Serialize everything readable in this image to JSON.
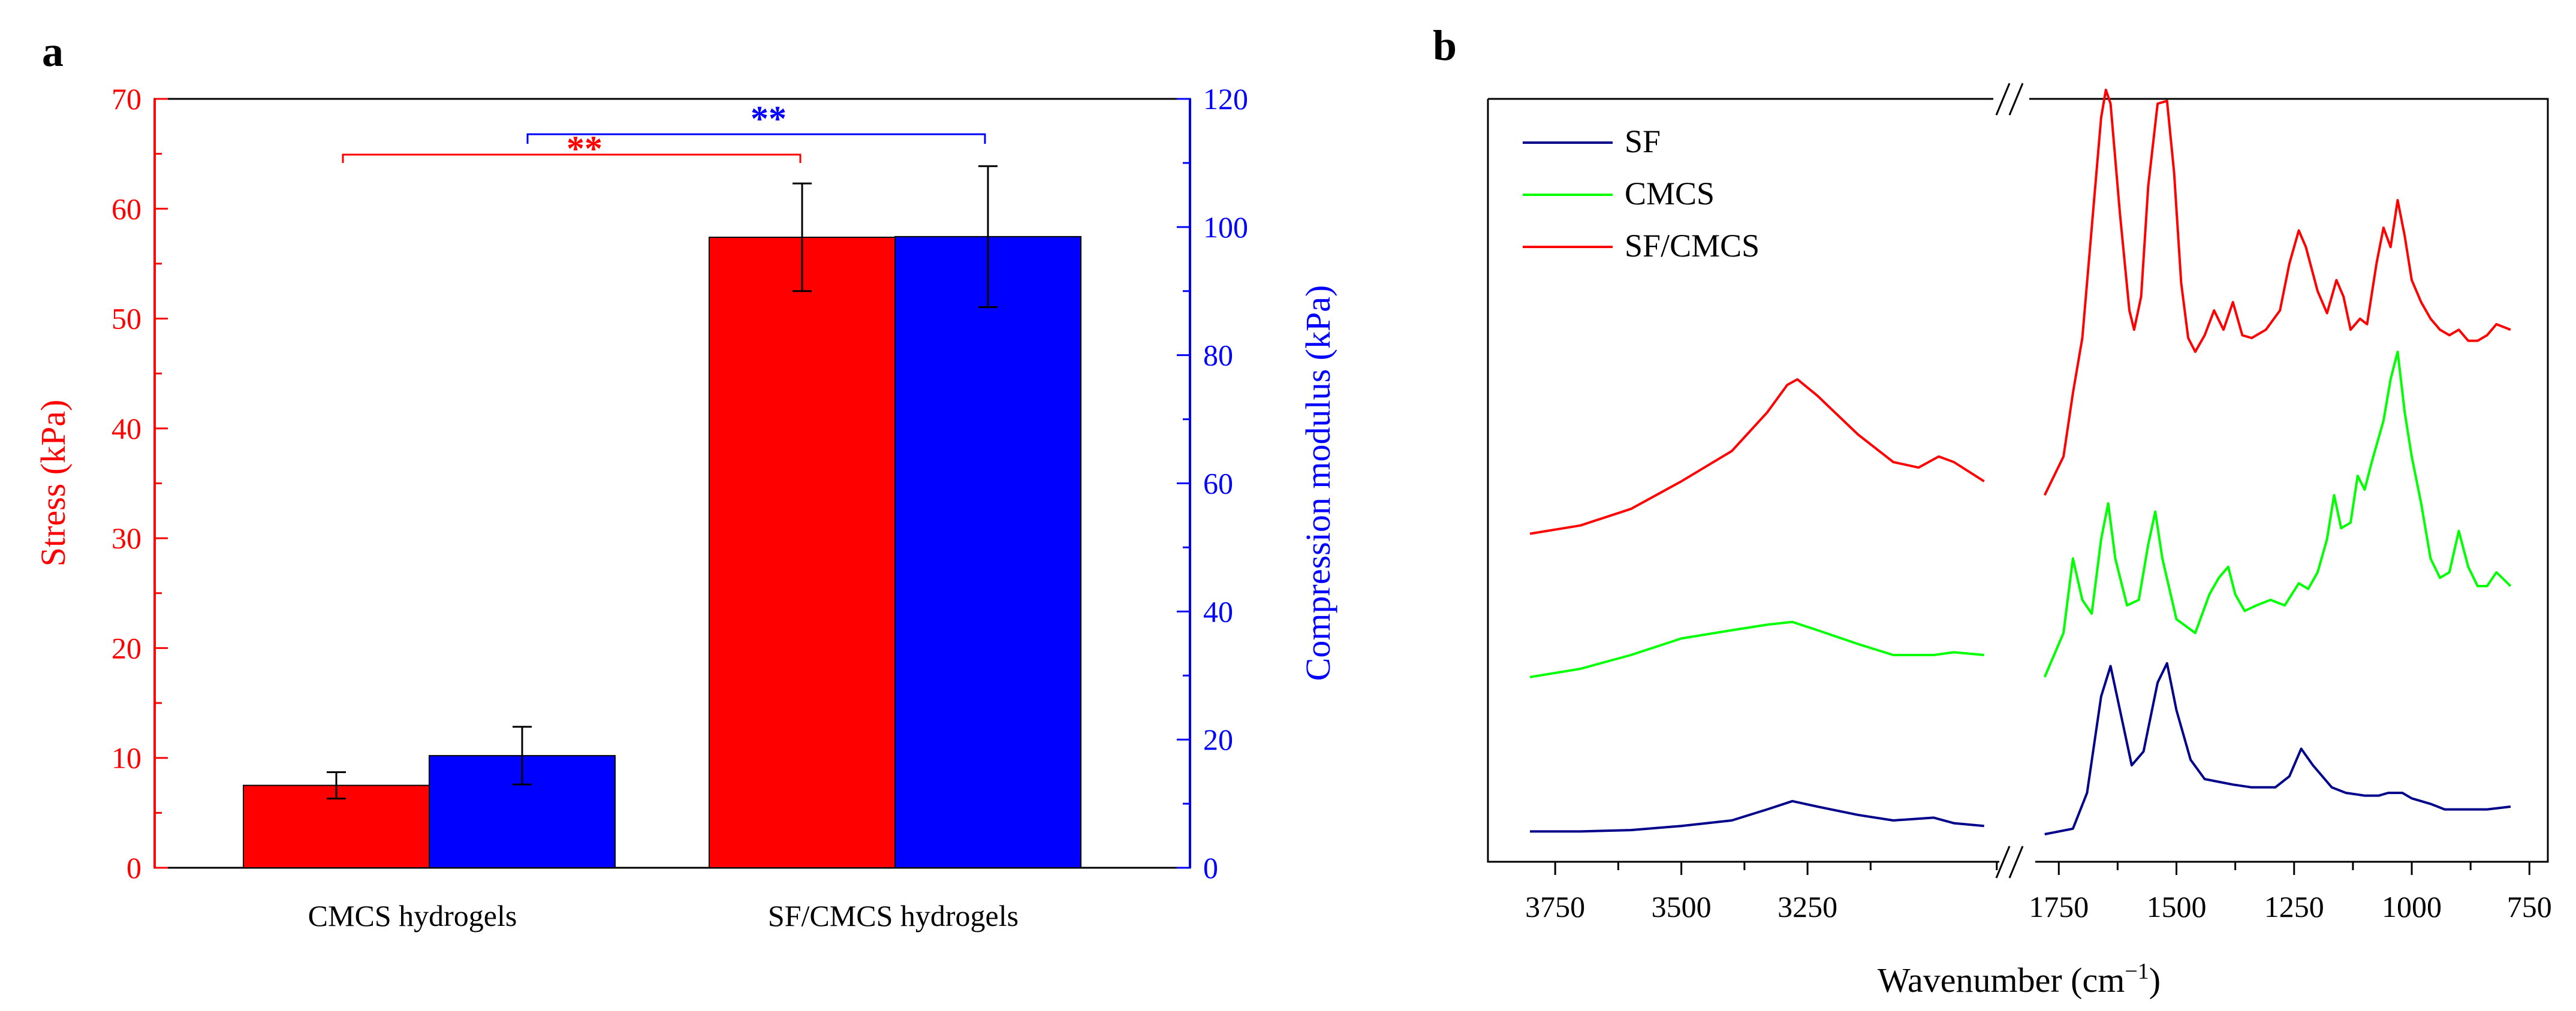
{
  "chart_data": [
    {
      "panel": "a",
      "type": "bar",
      "categories": [
        "CMCS hydrogels",
        "SF/CMCS hydrogels"
      ],
      "series": [
        {
          "name": "Stress (kPa)",
          "axis": "left",
          "color": "#ff0000",
          "values": [
            7.5,
            57.4
          ],
          "errors": [
            1.2,
            4.9
          ]
        },
        {
          "name": "Compression modulus (kPa)",
          "axis": "right",
          "color": "#0000ff",
          "values": [
            17.5,
            98.5
          ],
          "errors": [
            4.5,
            11.0
          ]
        }
      ],
      "ylabel": "Stress (kPa)",
      "ylabel_right": "Compression modulus (kPa)",
      "ylim": [
        0,
        70
      ],
      "ylim_right": [
        0,
        120
      ],
      "yticks": [
        "0",
        "10",
        "20",
        "30",
        "40",
        "50",
        "60",
        "70"
      ],
      "yticks_right": [
        "0",
        "20",
        "40",
        "60",
        "80",
        "100",
        "120"
      ],
      "left_axis_color": "#ff0000",
      "right_axis_color": "#0000ff",
      "significance": [
        {
          "label": "**",
          "color": "#ff0000",
          "axis": "left",
          "y": 64.5
        },
        {
          "label": "**",
          "color": "#0000ff",
          "axis": "right",
          "y": 114.0
        }
      ]
    },
    {
      "panel": "b",
      "type": "line",
      "xlabel": "Wavenumber (cm⁻¹)",
      "x_segments": [
        [
          3850,
          2870
        ],
        [
          1800,
          730
        ]
      ],
      "xticks": [
        "3750",
        "3500",
        "3250",
        "1750",
        "1500",
        "1250",
        "1000",
        "750"
      ],
      "xtick_values": [
        3750,
        3500,
        3250,
        1750,
        1500,
        1250,
        1000,
        750
      ],
      "series": [
        {
          "name": "SF",
          "color": "#00008b",
          "offset": 0.0,
          "points": [
            [
              3800,
              0.06
            ],
            [
              3700,
              0.06
            ],
            [
              3600,
              0.065
            ],
            [
              3500,
              0.08
            ],
            [
              3400,
              0.1
            ],
            [
              3330,
              0.14
            ],
            [
              3280,
              0.17
            ],
            [
              3230,
              0.15
            ],
            [
              3150,
              0.12
            ],
            [
              3080,
              0.1
            ],
            [
              3000,
              0.11
            ],
            [
              2960,
              0.09
            ],
            [
              2900,
              0.08
            ],
            [
              1780,
              0.05
            ],
            [
              1720,
              0.07
            ],
            [
              1690,
              0.2
            ],
            [
              1660,
              0.55
            ],
            [
              1640,
              0.66
            ],
            [
              1620,
              0.5
            ],
            [
              1595,
              0.3
            ],
            [
              1570,
              0.35
            ],
            [
              1540,
              0.6
            ],
            [
              1520,
              0.67
            ],
            [
              1500,
              0.5
            ],
            [
              1470,
              0.32
            ],
            [
              1440,
              0.25
            ],
            [
              1410,
              0.24
            ],
            [
              1380,
              0.23
            ],
            [
              1340,
              0.22
            ],
            [
              1290,
              0.22
            ],
            [
              1260,
              0.26
            ],
            [
              1235,
              0.36
            ],
            [
              1210,
              0.3
            ],
            [
              1170,
              0.22
            ],
            [
              1140,
              0.2
            ],
            [
              1100,
              0.19
            ],
            [
              1070,
              0.19
            ],
            [
              1050,
              0.2
            ],
            [
              1020,
              0.2
            ],
            [
              1000,
              0.18
            ],
            [
              960,
              0.16
            ],
            [
              930,
              0.14
            ],
            [
              880,
              0.14
            ],
            [
              840,
              0.14
            ],
            [
              790,
              0.15
            ]
          ]
        },
        {
          "name": "CMCS",
          "color": "#00ff00",
          "offset": 0.5,
          "points": [
            [
              3800,
              0.12
            ],
            [
              3700,
              0.15
            ],
            [
              3600,
              0.2
            ],
            [
              3500,
              0.26
            ],
            [
              3400,
              0.29
            ],
            [
              3330,
              0.31
            ],
            [
              3280,
              0.32
            ],
            [
              3230,
              0.29
            ],
            [
              3150,
              0.24
            ],
            [
              3080,
              0.2
            ],
            [
              3000,
              0.2
            ],
            [
              2960,
              0.21
            ],
            [
              2900,
              0.2
            ],
            [
              1780,
              0.12
            ],
            [
              1740,
              0.28
            ],
            [
              1720,
              0.55
            ],
            [
              1700,
              0.4
            ],
            [
              1680,
              0.35
            ],
            [
              1660,
              0.62
            ],
            [
              1645,
              0.75
            ],
            [
              1630,
              0.55
            ],
            [
              1605,
              0.38
            ],
            [
              1580,
              0.4
            ],
            [
              1560,
              0.6
            ],
            [
              1545,
              0.72
            ],
            [
              1530,
              0.55
            ],
            [
              1500,
              0.33
            ],
            [
              1460,
              0.28
            ],
            [
              1430,
              0.42
            ],
            [
              1410,
              0.48
            ],
            [
              1390,
              0.52
            ],
            [
              1375,
              0.42
            ],
            [
              1355,
              0.36
            ],
            [
              1330,
              0.38
            ],
            [
              1300,
              0.4
            ],
            [
              1270,
              0.38
            ],
            [
              1240,
              0.46
            ],
            [
              1220,
              0.44
            ],
            [
              1200,
              0.5
            ],
            [
              1180,
              0.62
            ],
            [
              1165,
              0.78
            ],
            [
              1150,
              0.66
            ],
            [
              1130,
              0.68
            ],
            [
              1115,
              0.85
            ],
            [
              1100,
              0.8
            ],
            [
              1085,
              0.9
            ],
            [
              1060,
              1.05
            ],
            [
              1045,
              1.2
            ],
            [
              1030,
              1.3
            ],
            [
              1015,
              1.08
            ],
            [
              1000,
              0.92
            ],
            [
              980,
              0.75
            ],
            [
              960,
              0.55
            ],
            [
              940,
              0.48
            ],
            [
              920,
              0.5
            ],
            [
              900,
              0.65
            ],
            [
              880,
              0.52
            ],
            [
              860,
              0.45
            ],
            [
              840,
              0.45
            ],
            [
              820,
              0.5
            ],
            [
              790,
              0.45
            ]
          ]
        },
        {
          "name": "SF/CMCS",
          "color": "#ff0000",
          "offset": 1.0,
          "points": [
            [
              3800,
              0.14
            ],
            [
              3700,
              0.17
            ],
            [
              3600,
              0.23
            ],
            [
              3500,
              0.33
            ],
            [
              3400,
              0.44
            ],
            [
              3330,
              0.58
            ],
            [
              3290,
              0.68
            ],
            [
              3270,
              0.7
            ],
            [
              3230,
              0.64
            ],
            [
              3150,
              0.5
            ],
            [
              3080,
              0.4
            ],
            [
              3030,
              0.38
            ],
            [
              2990,
              0.42
            ],
            [
              2960,
              0.4
            ],
            [
              2900,
              0.33
            ],
            [
              1780,
              0.28
            ],
            [
              1740,
              0.42
            ],
            [
              1720,
              0.65
            ],
            [
              1700,
              0.85
            ],
            [
              1680,
              1.25
            ],
            [
              1660,
              1.65
            ],
            [
              1650,
              1.75
            ],
            [
              1640,
              1.7
            ],
            [
              1620,
              1.3
            ],
            [
              1600,
              0.95
            ],
            [
              1590,
              0.88
            ],
            [
              1575,
              1.0
            ],
            [
              1560,
              1.4
            ],
            [
              1540,
              1.7
            ],
            [
              1520,
              1.71
            ],
            [
              1505,
              1.45
            ],
            [
              1490,
              1.05
            ],
            [
              1475,
              0.85
            ],
            [
              1460,
              0.8
            ],
            [
              1440,
              0.86
            ],
            [
              1420,
              0.95
            ],
            [
              1400,
              0.88
            ],
            [
              1380,
              0.98
            ],
            [
              1360,
              0.86
            ],
            [
              1340,
              0.85
            ],
            [
              1310,
              0.88
            ],
            [
              1280,
              0.95
            ],
            [
              1260,
              1.12
            ],
            [
              1240,
              1.24
            ],
            [
              1225,
              1.18
            ],
            [
              1200,
              1.02
            ],
            [
              1180,
              0.94
            ],
            [
              1160,
              1.06
            ],
            [
              1145,
              1.0
            ],
            [
              1130,
              0.88
            ],
            [
              1110,
              0.92
            ],
            [
              1095,
              0.9
            ],
            [
              1075,
              1.12
            ],
            [
              1060,
              1.25
            ],
            [
              1045,
              1.18
            ],
            [
              1030,
              1.35
            ],
            [
              1015,
              1.22
            ],
            [
              1000,
              1.06
            ],
            [
              980,
              0.98
            ],
            [
              960,
              0.92
            ],
            [
              940,
              0.88
            ],
            [
              920,
              0.86
            ],
            [
              900,
              0.88
            ],
            [
              880,
              0.84
            ],
            [
              860,
              0.84
            ],
            [
              840,
              0.86
            ],
            [
              820,
              0.9
            ],
            [
              790,
              0.88
            ]
          ]
        }
      ],
      "legend": [
        "SF",
        "CMCS",
        "SF/CMCS"
      ],
      "legend_position": "top-left"
    }
  ],
  "panel_labels": [
    "a",
    "b"
  ],
  "texts": {
    "a": {
      "xticks": [
        "CMCS hydrogels",
        "SF/CMCS hydrogels"
      ],
      "ylabel": "Stress (kPa)",
      "ylabel_right": "Compression modulus (kPa)",
      "sig_red": "**",
      "sig_blue": "**"
    },
    "b": {
      "legend": [
        "SF",
        "CMCS",
        "SF/CMCS"
      ],
      "xlabel_main": "Wavenumber (cm",
      "xlabel_sup": "−1",
      "xlabel_end": ")"
    }
  }
}
